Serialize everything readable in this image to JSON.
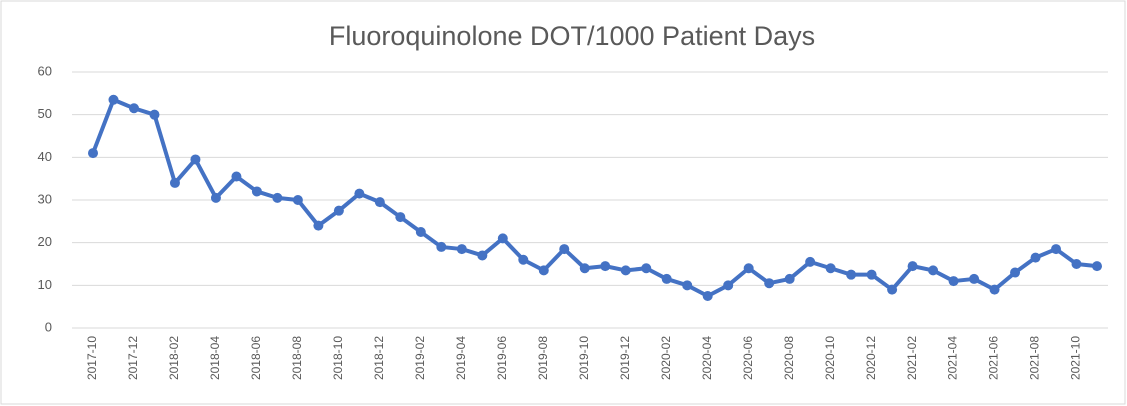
{
  "chart_data": {
    "type": "line",
    "title": "Fluoroquinolone DOT/1000 Patient Days",
    "categories": [
      "2017-10",
      null,
      "2017-12",
      null,
      "2018-02",
      null,
      "2018-04",
      null,
      "2018-06",
      null,
      "2018-08",
      null,
      "2018-10",
      null,
      "2018-12",
      null,
      "2019-02",
      null,
      "2019-04",
      null,
      "2019-06",
      null,
      "2019-08",
      null,
      "2019-10",
      null,
      "2019-12",
      null,
      "2020-02",
      null,
      "2020-04",
      null,
      "2020-06",
      null,
      "2020-08",
      null,
      "2020-10",
      null,
      "2020-12",
      null,
      "2021-02",
      null,
      "2021-04",
      null,
      "2021-06",
      null,
      "2021-08",
      null,
      "2021-10",
      null
    ],
    "values": [
      41,
      53.5,
      51.5,
      50,
      34,
      39.5,
      30.5,
      35.5,
      32,
      30.5,
      30,
      24,
      27.5,
      31.5,
      29.5,
      26,
      22.5,
      19,
      18.5,
      17,
      21,
      16,
      13.5,
      18.5,
      14,
      14.5,
      13.5,
      14,
      11.5,
      10,
      7.5,
      10,
      14,
      10.5,
      11.5,
      15.5,
      14,
      12.5,
      12.5,
      9,
      14.5,
      13.5,
      11,
      11.5,
      9,
      13,
      16.5,
      18.5,
      15,
      14.5
    ],
    "color": "#4472c4",
    "ylim": [
      0,
      60
    ],
    "yticks": [
      0,
      10,
      20,
      30,
      40,
      50,
      60
    ],
    "grid": true
  }
}
